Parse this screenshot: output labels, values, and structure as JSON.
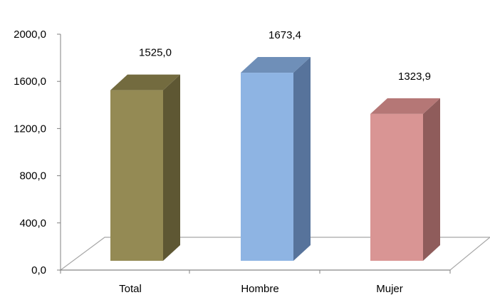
{
  "chart_data": {
    "type": "bar",
    "title": "",
    "xlabel": "",
    "ylabel": "",
    "categories": [
      "Total",
      "Hombre",
      "Mujer"
    ],
    "values": [
      1525.0,
      1673.4,
      1323.9
    ],
    "value_labels": [
      "1525,0",
      "1673,4",
      "1323,9"
    ],
    "ylim": [
      0,
      2000
    ],
    "yticks": [
      0,
      400,
      800,
      1200,
      1600,
      2000
    ],
    "ytick_labels": [
      "0,0",
      "400,0",
      "800,0",
      "1200,0",
      "1600,0",
      "2000,0"
    ],
    "grid": false,
    "legend": "none",
    "style": "3d-columns",
    "colors": [
      {
        "front": "#948a54",
        "side": "#5e5733",
        "top": "#736b3f"
      },
      {
        "front": "#8eb4e3",
        "side": "#57739b",
        "top": "#6f8fb8"
      },
      {
        "front": "#d99594",
        "side": "#8f5c5b",
        "top": "#b57776"
      }
    ]
  }
}
